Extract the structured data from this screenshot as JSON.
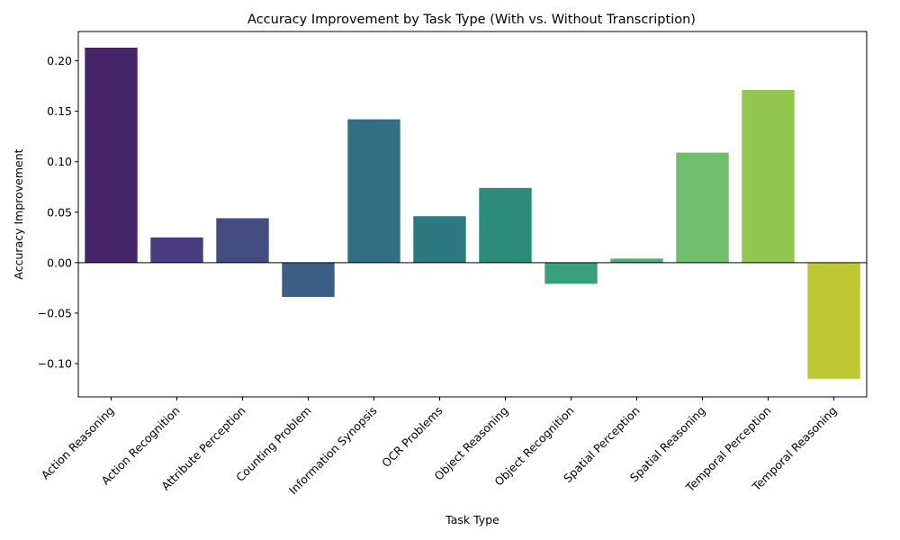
{
  "chart_data": {
    "type": "bar",
    "title": "Accuracy Improvement by Task Type (With vs. Without Transcription)",
    "xlabel": "Task Type",
    "ylabel": "Accuracy Improvement",
    "ylim": [
      -0.133,
      0.229
    ],
    "yticks": [
      -0.1,
      -0.05,
      0.0,
      0.05,
      0.1,
      0.15,
      0.2
    ],
    "ytick_labels": [
      "−0.10",
      "−0.05",
      "0.00",
      "0.05",
      "0.10",
      "0.15",
      "0.20"
    ],
    "grid": false,
    "categories": [
      "Action Reasoning",
      "Action Recognition",
      "Attribute Perception",
      "Counting Problem",
      "Information Synopsis",
      "OCR Problems",
      "Object Reasoning",
      "Object Recognition",
      "Spatial Perception",
      "Spatial Reasoning",
      "Temporal Perception",
      "Temporal Reasoning"
    ],
    "values": [
      0.213,
      0.025,
      0.044,
      -0.034,
      0.142,
      0.046,
      0.074,
      -0.021,
      0.004,
      0.109,
      0.171,
      -0.115
    ],
    "colors": [
      "#472469",
      "#4a3a7f",
      "#434d80",
      "#3b5d86",
      "#326f85",
      "#2c7a80",
      "#2d8b7a",
      "#3aa07a",
      "#4aae74",
      "#70be6c",
      "#92c650",
      "#bdc833"
    ]
  }
}
